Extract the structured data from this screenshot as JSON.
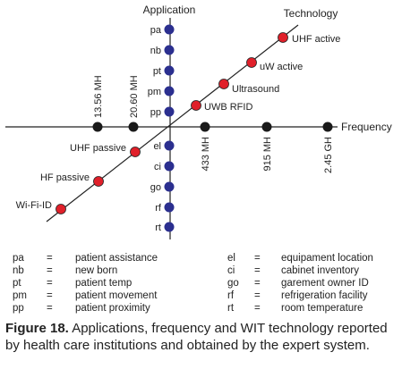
{
  "axes": {
    "application": "Application",
    "technology": "Technology",
    "frequency": "Frequency"
  },
  "applications_above": [
    "pa",
    "nb",
    "pt",
    "pm",
    "pp"
  ],
  "applications_below": [
    "el",
    "ci",
    "go",
    "rf",
    "rt"
  ],
  "frequencies_left": [
    "13.56 MH",
    "20.60 MH"
  ],
  "frequencies_right": [
    "433 MH",
    "915 MH",
    "2.45 GH"
  ],
  "technologies_upper": [
    "UWB RFID",
    "Ultrasound",
    "uW active",
    "UHF active"
  ],
  "technologies_lower": [
    "UHF passive",
    "HF passive",
    "Wi-Fi-ID"
  ],
  "legend_left": [
    {
      "abbr": "pa",
      "eq": "=",
      "def": "patient assistance"
    },
    {
      "abbr": "nb",
      "eq": "=",
      "def": "new born"
    },
    {
      "abbr": "pt",
      "eq": "=",
      "def": "patient temp"
    },
    {
      "abbr": "pm",
      "eq": "=",
      "def": "patient movement"
    },
    {
      "abbr": "pp",
      "eq": "=",
      "def": "patient proximity"
    }
  ],
  "legend_right": [
    {
      "abbr": "el",
      "eq": "=",
      "def": "equipament location"
    },
    {
      "abbr": "ci",
      "eq": "=",
      "def": "cabinet inventory"
    },
    {
      "abbr": "go",
      "eq": "=",
      "def": "garement owner ID"
    },
    {
      "abbr": "rf",
      "eq": "=",
      "def": "refrigeration facility"
    },
    {
      "abbr": "rt",
      "eq": "=",
      "def": "room temperature"
    }
  ],
  "caption": {
    "label": "Figure 18.",
    "text": "Applications, frequency and WIT technology reported by health care institutions and obtained by the expert system."
  },
  "colors": {
    "application_dot": "#2b2f8f",
    "frequency_dot": "#1a1a1a",
    "technology_dot": "#e0202a",
    "line": "#222222"
  }
}
